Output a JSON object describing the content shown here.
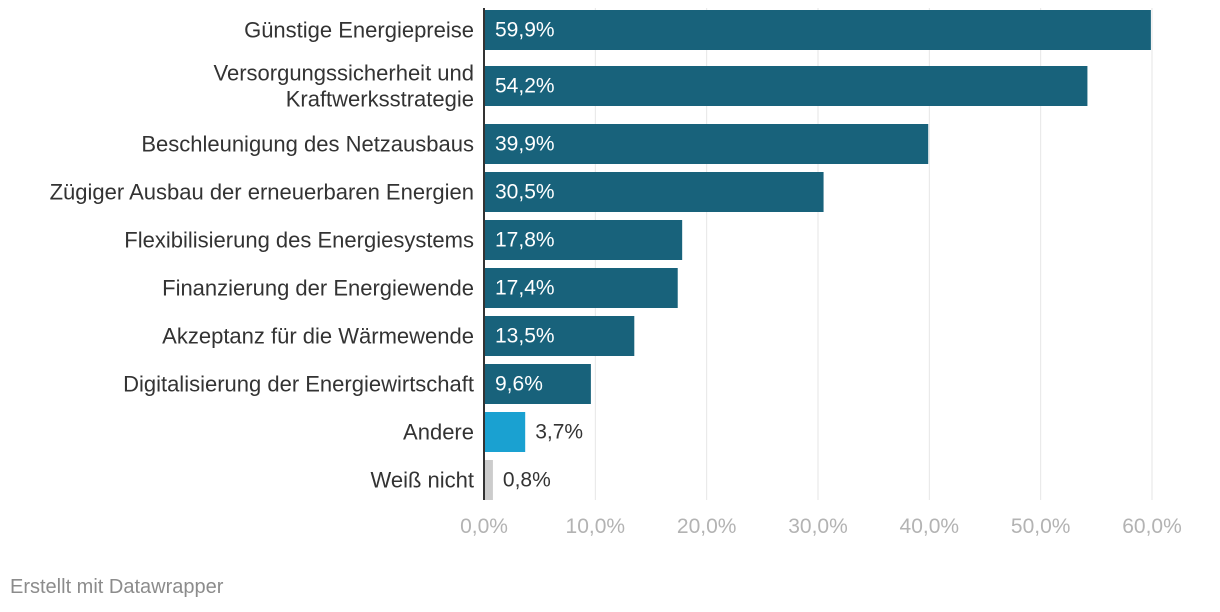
{
  "chart_data": {
    "type": "bar",
    "orientation": "horizontal",
    "title": "",
    "xlabel": "",
    "ylabel": "",
    "xlim": [
      0,
      60
    ],
    "grid": true,
    "categories": [
      [
        "Günstige Energiepreise"
      ],
      [
        "Versorgungssicherheit und",
        "Kraftwerksstrategie"
      ],
      [
        "Beschleunigung des Netzausbaus"
      ],
      [
        "Zügiger Ausbau der erneuerbaren Energien"
      ],
      [
        "Flexibilisierung des Energiesystems"
      ],
      [
        "Finanzierung der Energiewende"
      ],
      [
        "Akzeptanz für die Wärmewende"
      ],
      [
        "Digitalisierung der Energiewirtschaft"
      ],
      [
        "Andere"
      ],
      [
        "Weiß nicht"
      ]
    ],
    "values": [
      59.9,
      54.2,
      39.9,
      30.5,
      17.8,
      17.4,
      13.5,
      9.6,
      3.7,
      0.8
    ],
    "value_labels": [
      "59,9%",
      "54,2%",
      "39,9%",
      "30,5%",
      "17,8%",
      "17,4%",
      "13,5%",
      "9,6%",
      "3,7%",
      "0,8%"
    ],
    "bar_colors": [
      "#18627b",
      "#18627b",
      "#18627b",
      "#18627b",
      "#18627b",
      "#18627b",
      "#18627b",
      "#18627b",
      "#1aa1d1",
      "#cccccc"
    ],
    "x_ticks": [
      0,
      10,
      20,
      30,
      40,
      50,
      60
    ],
    "x_tick_labels": [
      "0,0%",
      "10,0%",
      "20,0%",
      "30,0%",
      "40,0%",
      "50,0%",
      "60,0%"
    ]
  },
  "colors": {
    "grid": "#e6e6e6",
    "axis": "#333333",
    "label_inside": "#ffffff",
    "label_outside": "#333333"
  },
  "footer": {
    "credit": "Erstellt mit Datawrapper"
  }
}
